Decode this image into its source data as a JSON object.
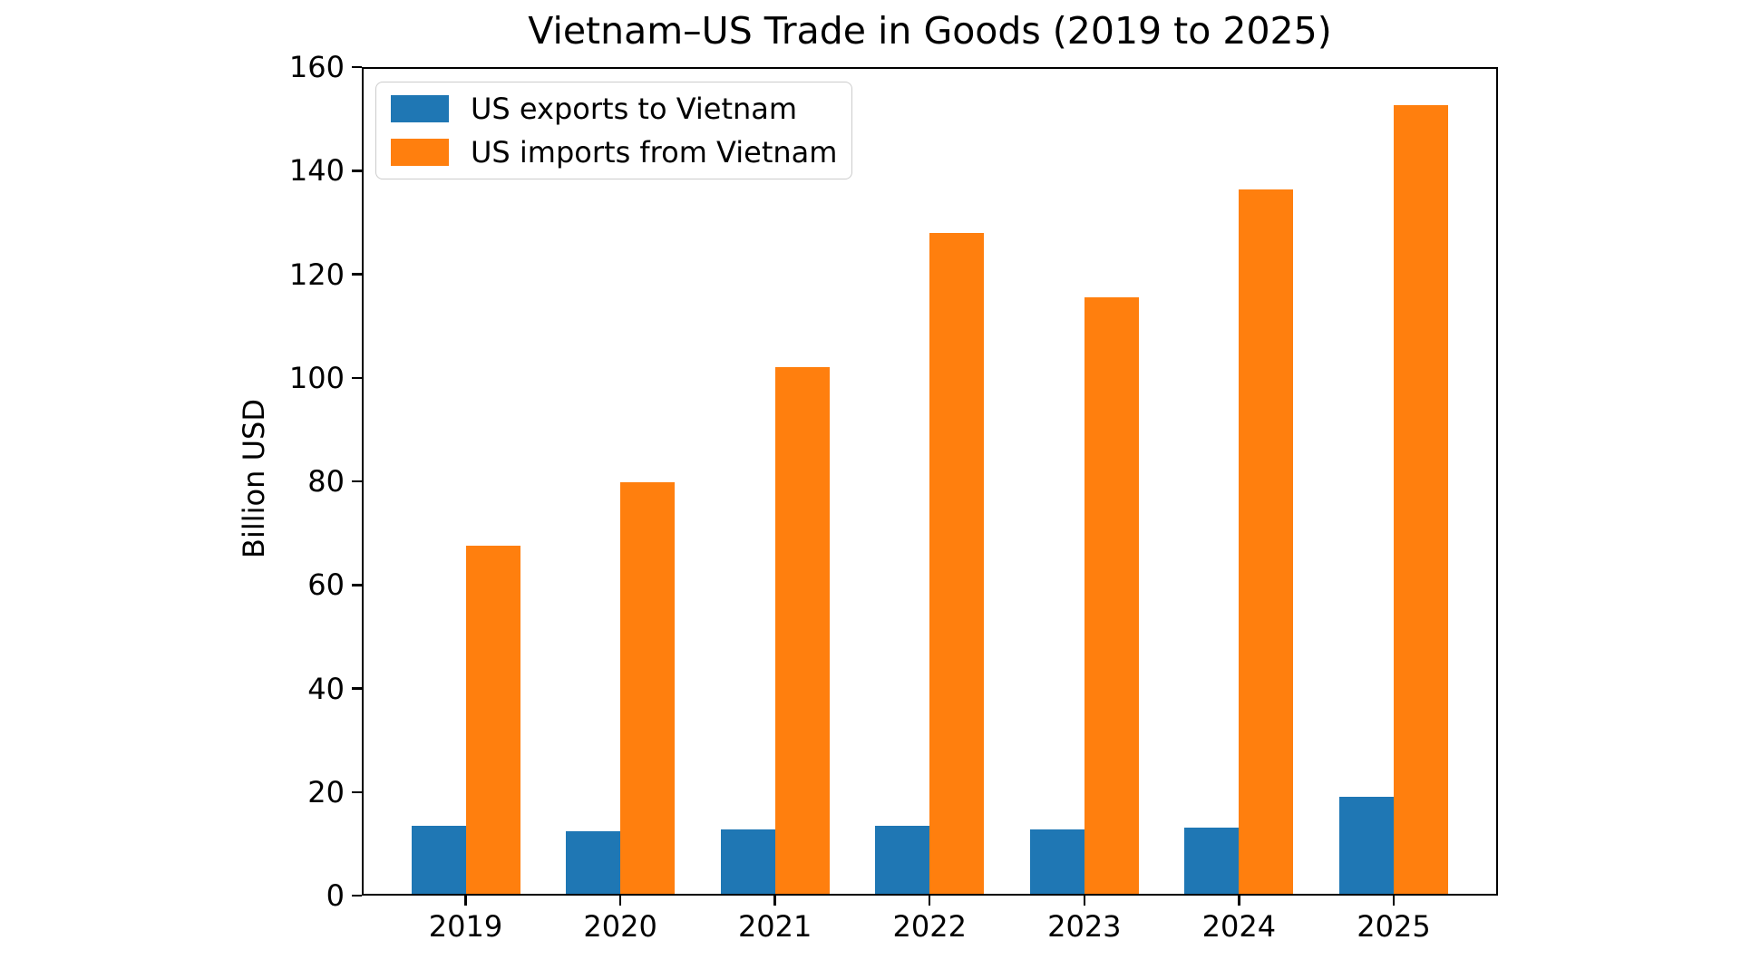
{
  "figure": {
    "title": "Vietnam–US Trade in Goods (2019 to 2025)",
    "ylabel": "Billion USD"
  },
  "chart_data": {
    "type": "bar",
    "title": "Vietnam–US Trade in Goods (2019 to 2025)",
    "xlabel": "",
    "ylabel": "Billion USD",
    "categories": [
      "2019",
      "2020",
      "2021",
      "2022",
      "2023",
      "2024",
      "2025"
    ],
    "series": [
      {
        "name": "US exports to Vietnam",
        "color": "#1f77b4",
        "values": [
          13.5,
          12.4,
          12.8,
          13.5,
          12.8,
          13.2,
          19.1
        ]
      },
      {
        "name": "US imports from Vietnam",
        "color": "#ff7f0e",
        "values": [
          67.6,
          79.9,
          102.1,
          127.9,
          115.5,
          136.3,
          152.6
        ]
      }
    ],
    "ylim": [
      0,
      160
    ],
    "yticks": [
      0,
      20,
      40,
      60,
      80,
      100,
      120,
      140,
      160
    ],
    "grid": false,
    "legend_position": "upper left",
    "bar_width_fraction": 0.35
  }
}
